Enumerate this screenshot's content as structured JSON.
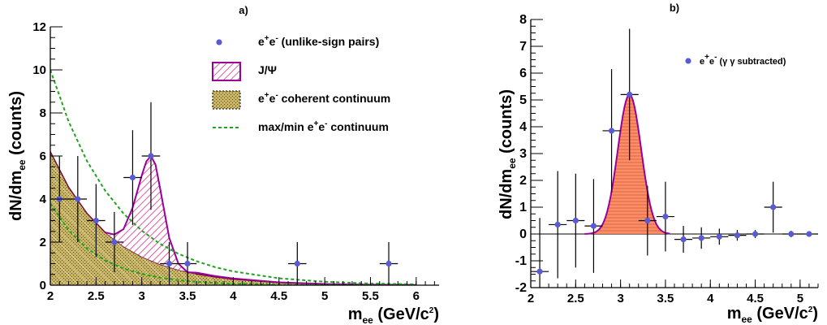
{
  "chart_data": [
    {
      "type": "scatter",
      "title": "a)",
      "xlabel": "m",
      "xlabel_sub": "ee",
      "xlabel_unit": "(GeV/c",
      "xlabel_unit_sup": "2",
      "xlabel_unit_end": ")",
      "ylabel": "dN/dm",
      "ylabel_sub": "ee",
      "ylabel_unit": "(counts)",
      "xlim": [
        2,
        6.25
      ],
      "ylim": [
        0,
        12
      ],
      "xticks": [
        2,
        2.5,
        3,
        3.5,
        4,
        4.5,
        5,
        5.5,
        6
      ],
      "xtick_labels": [
        "2",
        "2.5",
        "3",
        "3.5",
        "4",
        "4.5",
        "5",
        "5.5",
        "6"
      ],
      "yticks": [
        0,
        2,
        4,
        6,
        8,
        10,
        12
      ],
      "ytick_labels": [
        "0",
        "2",
        "4",
        "6",
        "8",
        "10",
        "12"
      ],
      "series": [
        {
          "kind": "points",
          "color": "#5a5ad6",
          "x": [
            2.1,
            2.3,
            2.5,
            2.7,
            2.9,
            3.1,
            3.3,
            3.5,
            4.7,
            5.7
          ],
          "y": [
            4,
            4,
            3,
            2,
            5,
            6,
            1,
            1,
            1,
            1
          ],
          "yerr_up": [
            2,
            2,
            1.7,
            1.4,
            2.2,
            2.5,
            1.0,
            1.0,
            1.0,
            1.0
          ],
          "yerr_down": [
            2,
            2,
            1.7,
            1.4,
            2.2,
            2.5,
            1.0,
            1.0,
            1.0,
            1.0
          ],
          "xerr": 0.1
        },
        {
          "kind": "filled-curve",
          "fill": "#c9b560",
          "stroke": "#7a0a3a",
          "x": [
            2.0,
            2.2,
            2.4,
            2.6,
            2.8,
            3.0,
            3.2,
            3.4,
            3.6,
            3.8,
            4.0,
            4.5,
            5.0,
            5.5,
            6.0
          ],
          "y": [
            6.2,
            4.55,
            3.34,
            2.45,
            1.8,
            1.32,
            0.97,
            0.71,
            0.52,
            0.38,
            0.28,
            0.12,
            0.05,
            0.02,
            0.01
          ]
        },
        {
          "kind": "hatched-peak",
          "fill": "#d8348c",
          "stroke": "#990099",
          "x": [
            2.6,
            2.7,
            2.8,
            2.9,
            3.0,
            3.05,
            3.1,
            3.15,
            3.2,
            3.3,
            3.4,
            3.5
          ],
          "y": [
            2.45,
            2.35,
            2.6,
            3.6,
            5.1,
            5.75,
            6.0,
            5.6,
            4.5,
            2.2,
            1.0,
            0.6
          ]
        },
        {
          "kind": "dashed-line",
          "color": "#1ea51e",
          "x": [
            2.0,
            2.2,
            2.4,
            2.6,
            2.8,
            3.0,
            3.2,
            3.4,
            3.6,
            3.8,
            4.0,
            4.5,
            5.0,
            5.5,
            6.0
          ],
          "y": [
            10.0,
            7.6,
            5.77,
            4.39,
            3.33,
            2.53,
            1.92,
            1.46,
            1.11,
            0.84,
            0.64,
            0.32,
            0.16,
            0.08,
            0.04
          ]
        },
        {
          "kind": "dashed-line",
          "color": "#1ea51e",
          "x": [
            2.0,
            2.2,
            2.4,
            2.6,
            2.8,
            3.0,
            3.2,
            3.4,
            3.6,
            3.8,
            4.0,
            4.5,
            5.0,
            5.5
          ],
          "y": [
            3.8,
            2.55,
            1.71,
            1.15,
            0.77,
            0.52,
            0.35,
            0.23,
            0.16,
            0.1,
            0.07,
            0.02,
            0.01,
            0.0
          ]
        }
      ],
      "legend": [
        {
          "symbol": "point",
          "color": "#5a5ad6",
          "text": "e",
          "sup1": "+",
          "mid": "e",
          "sup2": "-",
          "rest": " (unlike-sign pairs)"
        },
        {
          "symbol": "hatch",
          "color": "#d8348c",
          "text": "J/Ψ"
        },
        {
          "symbol": "box",
          "color": "#c9b560",
          "text": "e",
          "sup1": "+",
          "mid": "e",
          "sup2": "-",
          "rest": " coherent continuum"
        },
        {
          "symbol": "dash",
          "color": "#1ea51e",
          "text": "max/min e",
          "sup1": "+",
          "mid": "e",
          "sup2": "-",
          "rest": " continuum"
        }
      ]
    },
    {
      "type": "scatter",
      "title": "b)",
      "xlabel": "m",
      "xlabel_sub": "ee",
      "xlabel_unit": "(GeV/c",
      "xlabel_unit_sup": "2",
      "xlabel_unit_end": ")",
      "ylabel": "dN/dm",
      "ylabel_sub": "ee",
      "ylabel_unit": "(counts)",
      "xlim": [
        2,
        5.2
      ],
      "ylim": [
        -2,
        8
      ],
      "xticks": [
        2,
        2.5,
        3,
        3.5,
        4,
        4.5,
        5
      ],
      "xtick_labels": [
        "2",
        "2.5",
        "3",
        "3.5",
        "4",
        "4.5",
        "5"
      ],
      "yticks": [
        -2,
        -1,
        0,
        1,
        2,
        3,
        4,
        5,
        6,
        7,
        8
      ],
      "ytick_labels": [
        "-2",
        "-1",
        "0",
        "1",
        "2",
        "3",
        "4",
        "5",
        "6",
        "7",
        "8"
      ],
      "series": [
        {
          "kind": "gaussian",
          "fill": "#f2784e",
          "stroke": "#990099",
          "mean": 3.1,
          "sigma": 0.13,
          "amplitude": 5.2,
          "range": [
            2.6,
            3.55
          ]
        },
        {
          "kind": "points",
          "color": "#5a5ad6",
          "x": [
            2.1,
            2.3,
            2.5,
            2.7,
            2.9,
            3.1,
            3.3,
            3.5,
            3.7,
            3.9,
            4.1,
            4.3,
            4.5,
            4.7,
            4.9,
            5.1
          ],
          "y": [
            -1.4,
            0.35,
            0.5,
            0.3,
            3.85,
            5.2,
            0.5,
            0.65,
            -0.2,
            -0.15,
            -0.1,
            -0.05,
            0.0,
            1.0,
            0.0,
            0.0
          ],
          "yerr_up": [
            2.0,
            2.0,
            1.75,
            1.75,
            2.3,
            2.45,
            1.3,
            1.3,
            0.5,
            0.4,
            0.3,
            0.2,
            0.15,
            0.95,
            0.12,
            0.1
          ],
          "yerr_down": [
            2.0,
            2.0,
            1.75,
            1.75,
            2.3,
            2.45,
            1.3,
            1.3,
            0.5,
            0.4,
            0.3,
            0.2,
            0.15,
            0.95,
            0.12,
            0.1
          ],
          "xerr": 0.1
        }
      ],
      "legend": [
        {
          "symbol": "point",
          "color": "#5a5ad6",
          "text": "e",
          "sup1": "+",
          "mid": "e",
          "sup2": "-",
          "rest": " (γ γ subtracted)"
        }
      ]
    }
  ]
}
